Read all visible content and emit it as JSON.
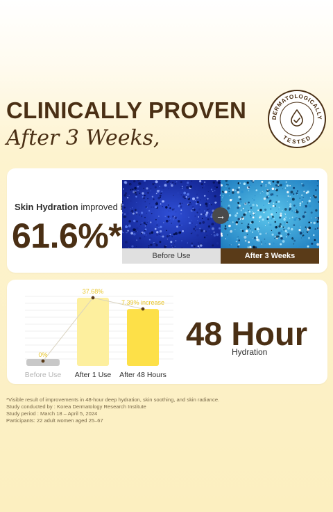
{
  "header": {
    "title": "CLINICALLY PROVEN",
    "subtitle": "After 3 Weeks,"
  },
  "badge": {
    "text_top": "DERMATOLOGICALLY",
    "text_bottom": "TESTED"
  },
  "hydration_card": {
    "label_bold": "Skin Hydration",
    "label_rest": " improved by",
    "value": "61.6%*",
    "before_caption": "Before Use",
    "after_caption": "After 3 Weeks"
  },
  "chart_data": {
    "type": "bar",
    "categories": [
      "Before Use",
      "After 1 Use",
      "After 48 Hours"
    ],
    "values": [
      0,
      37.68,
      7.39
    ],
    "value_labels": [
      "0%",
      "37.68%",
      "7.39% increase"
    ],
    "bar_colors": [
      "#c8c8c8",
      "#fdef9e",
      "#fde048"
    ],
    "label_color": "#e8c52a",
    "category_colors": [
      "#b5b5b5",
      "#2b2b2b",
      "#2b2b2b"
    ],
    "grid": true
  },
  "duration_card": {
    "value": "48 Hour",
    "label": "Hydration"
  },
  "footnotes": [
    "*Visible result of improvements in 48-hour deep hydration, skin soothing, and skin radiance.",
    "Study conducted by : Korea Dermatology Research Institute",
    "Study period : March 18 – April 5, 2024",
    "Participants: 22 adult women aged 25–67"
  ]
}
